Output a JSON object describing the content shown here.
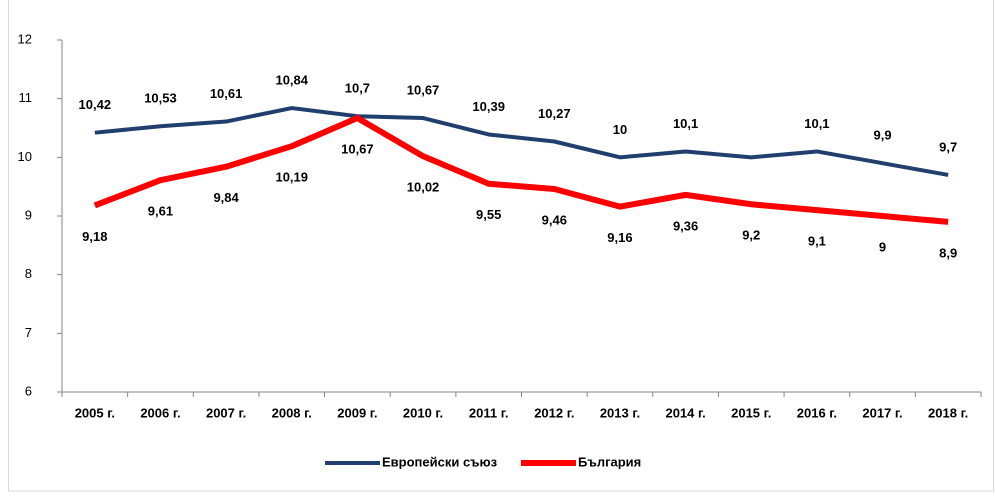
{
  "chart_data": {
    "type": "line",
    "categories": [
      "2005 г.",
      "2006 г.",
      "2007 г.",
      "2008 г.",
      "2009 г.",
      "2010 г.",
      "2011 г.",
      "2012 г.",
      "2013 г.",
      "2014 г.",
      "2015 г.",
      "2016 г.",
      "2017 г.",
      "2018 г."
    ],
    "series": [
      {
        "name": "Европейски съюз",
        "color": "#203f6e",
        "values": [
          10.42,
          10.53,
          10.61,
          10.84,
          10.7,
          10.67,
          10.39,
          10.27,
          10,
          10.1,
          10,
          10.1,
          9.9,
          9.7
        ],
        "value_labels": [
          "10,42",
          "10,53",
          "10,61",
          "10,84",
          "10,7",
          "10,67",
          "10,39",
          "10,27",
          "10",
          "10,1",
          null,
          "10,1",
          "9,9",
          "9,7"
        ]
      },
      {
        "name": "България",
        "color": "#ff0000",
        "values": [
          9.18,
          9.61,
          9.84,
          10.19,
          10.67,
          10.02,
          9.55,
          9.46,
          9.16,
          9.36,
          9.2,
          9.1,
          9,
          8.9
        ],
        "value_labels": [
          "9,18",
          "9,61",
          "9,84",
          "10,19",
          "10,67",
          "10,02",
          "9,55",
          "9,46",
          "9,16",
          "9,36",
          "9,2",
          "9,1",
          "9",
          "8,9"
        ]
      }
    ],
    "ylim": [
      6,
      12
    ],
    "yticks": [
      6,
      7,
      8,
      9,
      10,
      11,
      12
    ],
    "legend": "bottom"
  }
}
